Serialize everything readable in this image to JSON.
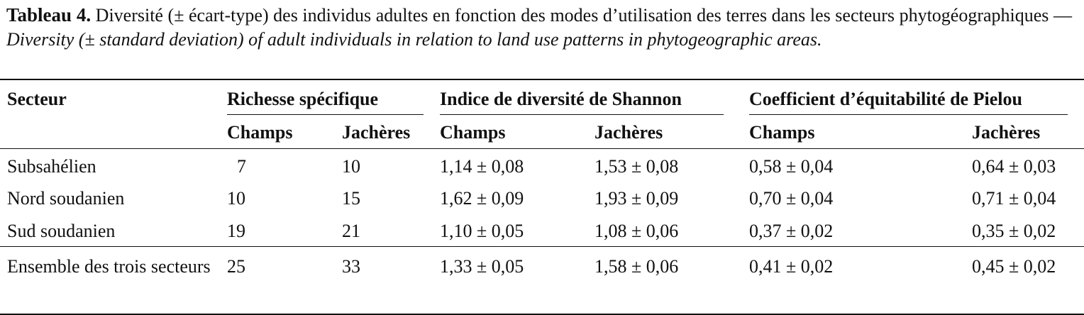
{
  "caption": {
    "label": "Tableau 4.",
    "french": "Diversité (± écart-type) des individus adultes en fonction des modes d’utilisation des terres dans les secteurs phytogéographiques —",
    "english": "Diversity (± standard deviation) of adult individuals in relation to land use patterns in phytogeographic areas."
  },
  "table": {
    "header": "Secteur",
    "groups": [
      "Richesse spécifique",
      "Indice de diversité de Shannon",
      "Coefficient d’équitabilité de Pielou"
    ],
    "subheaders": [
      "Champs",
      "Jachères",
      "Champs",
      "Jachères",
      "Champs",
      "Jachères"
    ],
    "rows": [
      [
        "Subsahélien",
        "7",
        "10",
        "1,14 ± 0,08",
        "1,53 ± 0,08",
        "0,58 ± 0,04",
        "0,64 ± 0,03"
      ],
      [
        "Nord soudanien",
        "10",
        "15",
        "1,62 ± 0,09",
        "1,93 ± 0,09",
        "0,70 ± 0,04",
        "0,71 ± 0,04"
      ],
      [
        "Sud soudanien",
        "19",
        "21",
        "1,10 ± 0,05",
        "1,08 ± 0,06",
        "0,37 ± 0,02",
        "0,35 ± 0,02"
      ],
      [
        "Ensemble des trois secteurs",
        "25",
        "33",
        "1,33 ± 0,05",
        "1,58 ± 0,06",
        "0,41 ± 0,02",
        "0,45 ± 0,02"
      ]
    ]
  }
}
